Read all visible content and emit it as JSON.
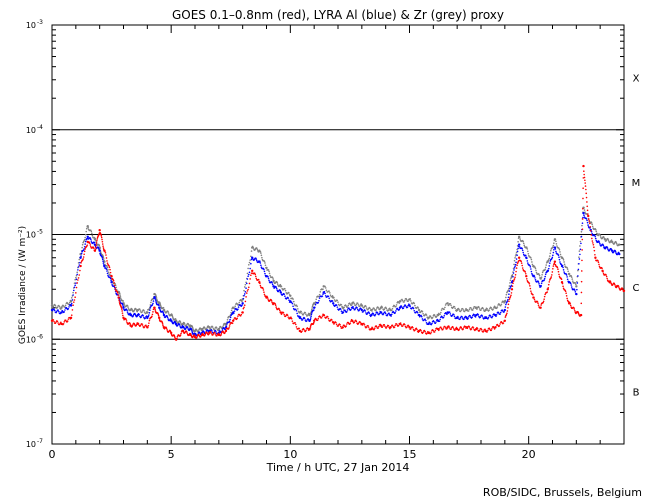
{
  "chart_data": {
    "type": "scatter",
    "title": "GOES 0.1–0.8nm (red), LYRA Al (blue) & Zr (grey) proxy",
    "xlabel": "Time / h UTC, 27 Jan 2014",
    "ylabel": "GOES Irradiance / (W m⁻²)",
    "xlim": [
      0,
      24
    ],
    "ylim": [
      1e-07,
      0.001
    ],
    "yscale": "log",
    "credit": "ROB/SIDC, Brussels, Belgium",
    "x_ticks": [
      0,
      5,
      10,
      15,
      20
    ],
    "y_ticks": [
      {
        "value": 1e-07,
        "base": "10",
        "exp": "-7"
      },
      {
        "value": 1e-06,
        "base": "10",
        "exp": "-6"
      },
      {
        "value": 1e-05,
        "base": "10",
        "exp": "-5"
      },
      {
        "value": 0.0001,
        "base": "10",
        "exp": "-4"
      },
      {
        "value": 0.001,
        "base": "10",
        "exp": "-3"
      }
    ],
    "class_lines": [
      1e-06,
      1e-05,
      0.0001
    ],
    "flare_classes": [
      {
        "label": "X",
        "value": 0.000316
      },
      {
        "label": "M",
        "value": 3.16e-05
      },
      {
        "label": "C",
        "value": 3.16e-06
      },
      {
        "label": "B",
        "value": 3.16e-07
      }
    ],
    "series": [
      {
        "color": "#ff0000",
        "x": [
          0.0,
          0.4,
          0.8,
          1.2,
          1.5,
          1.8,
          2.0,
          2.2,
          2.5,
          2.8,
          3.0,
          3.3,
          3.6,
          4.0,
          4.3,
          4.5,
          4.7,
          5.0,
          5.2,
          5.5,
          5.8,
          6.0,
          6.3,
          6.6,
          7.0,
          7.3,
          7.6,
          8.0,
          8.4,
          8.7,
          9.0,
          9.3,
          9.6,
          10.0,
          10.4,
          10.8,
          11.0,
          11.4,
          11.8,
          12.2,
          12.6,
          13.0,
          13.4,
          13.8,
          14.2,
          14.6,
          15.0,
          15.4,
          15.8,
          16.2,
          16.6,
          17.0,
          17.4,
          17.8,
          18.2,
          18.6,
          19.0,
          19.3,
          19.6,
          19.9,
          20.2,
          20.5,
          20.8,
          21.1,
          21.4,
          21.7,
          22.0,
          22.2,
          22.3,
          22.5,
          22.8,
          23.1,
          23.4,
          23.7,
          24.0
        ],
        "values": [
          1.5e-06,
          1.4e-06,
          1.6e-06,
          5e-06,
          8.5e-06,
          7e-06,
          1.1e-05,
          7e-06,
          4e-06,
          2.5e-06,
          1.6e-06,
          1.35e-06,
          1.4e-06,
          1.3e-06,
          2e-06,
          1.6e-06,
          1.3e-06,
          1.15e-06,
          1e-06,
          1.2e-06,
          1.1e-06,
          1.05e-06,
          1.1e-06,
          1.15e-06,
          1.1e-06,
          1.2e-06,
          1.5e-06,
          1.8e-06,
          4.5e-06,
          3.5e-06,
          2.5e-06,
          2.2e-06,
          1.8e-06,
          1.6e-06,
          1.2e-06,
          1.25e-06,
          1.5e-06,
          1.7e-06,
          1.45e-06,
          1.3e-06,
          1.5e-06,
          1.4e-06,
          1.25e-06,
          1.35e-06,
          1.3e-06,
          1.4e-06,
          1.3e-06,
          1.2e-06,
          1.15e-06,
          1.25e-06,
          1.3e-06,
          1.25e-06,
          1.3e-06,
          1.25e-06,
          1.2e-06,
          1.3e-06,
          1.5e-06,
          3e-06,
          6e-06,
          4e-06,
          2.5e-06,
          2e-06,
          3e-06,
          5.5e-06,
          3.5e-06,
          2.2e-06,
          1.8e-06,
          1.7e-06,
          4.5e-05,
          1.5e-05,
          6e-06,
          4.5e-06,
          3.5e-06,
          3.2e-06,
          2.9e-06
        ]
      },
      {
        "color": "#0000ff",
        "x": [
          0.0,
          0.4,
          0.8,
          1.2,
          1.5,
          1.8,
          2.0,
          2.2,
          2.5,
          2.8,
          3.0,
          3.3,
          3.6,
          4.0,
          4.3,
          4.5,
          4.7,
          5.0,
          5.2,
          5.5,
          5.8,
          6.0,
          6.3,
          6.6,
          7.0,
          7.3,
          7.6,
          8.0,
          8.4,
          8.7,
          9.0,
          9.3,
          9.6,
          10.0,
          10.4,
          10.8,
          11.0,
          11.4,
          11.8,
          12.2,
          12.6,
          13.0,
          13.4,
          13.8,
          14.2,
          14.6,
          15.0,
          15.4,
          15.8,
          16.2,
          16.6,
          17.0,
          17.4,
          17.8,
          18.2,
          18.6,
          19.0,
          19.3,
          19.6,
          19.9,
          20.2,
          20.5,
          20.8,
          21.1,
          21.4,
          21.7,
          22.0,
          22.3,
          22.6,
          22.9,
          23.2,
          23.5,
          23.8
        ],
        "values": [
          1.9e-06,
          1.8e-06,
          2.1e-06,
          6e-06,
          9.5e-06,
          8e-06,
          7e-06,
          5e-06,
          3.5e-06,
          2.5e-06,
          2e-06,
          1.7e-06,
          1.7e-06,
          1.6e-06,
          2.5e-06,
          2e-06,
          1.7e-06,
          1.5e-06,
          1.4e-06,
          1.3e-06,
          1.25e-06,
          1.1e-06,
          1.15e-06,
          1.2e-06,
          1.15e-06,
          1.3e-06,
          1.8e-06,
          2.2e-06,
          6e-06,
          5.5e-06,
          4e-06,
          3.2e-06,
          2.8e-06,
          2.3e-06,
          1.6e-06,
          1.5e-06,
          2e-06,
          2.8e-06,
          2.2e-06,
          1.8e-06,
          2e-06,
          1.9e-06,
          1.7e-06,
          1.8e-06,
          1.7e-06,
          2e-06,
          2.1e-06,
          1.7e-06,
          1.4e-06,
          1.5e-06,
          1.8e-06,
          1.6e-06,
          1.6e-06,
          1.7e-06,
          1.6e-06,
          1.7e-06,
          1.9e-06,
          3.5e-06,
          8e-06,
          6e-06,
          4e-06,
          3.2e-06,
          4.5e-06,
          7.5e-06,
          5e-06,
          3.5e-06,
          2.7e-06,
          1.6e-05,
          1.1e-05,
          8.5e-06,
          7.5e-06,
          7e-06,
          6.5e-06
        ]
      },
      {
        "color": "#808080",
        "x": [
          0.0,
          0.4,
          0.8,
          1.2,
          1.5,
          1.8,
          2.0,
          2.2,
          2.5,
          2.8,
          3.0,
          3.3,
          3.6,
          4.0,
          4.3,
          4.5,
          4.7,
          5.0,
          5.2,
          5.5,
          5.8,
          6.0,
          6.3,
          6.6,
          7.0,
          7.3,
          7.6,
          8.0,
          8.4,
          8.7,
          9.0,
          9.3,
          9.6,
          10.0,
          10.4,
          10.8,
          11.0,
          11.4,
          11.8,
          12.2,
          12.6,
          13.0,
          13.4,
          13.8,
          14.2,
          14.6,
          15.0,
          15.4,
          15.8,
          16.2,
          16.6,
          17.0,
          17.4,
          17.8,
          18.2,
          18.6,
          19.0,
          19.3,
          19.6,
          19.9,
          20.2,
          20.5,
          20.8,
          21.1,
          21.4,
          21.7,
          22.0,
          22.3,
          22.6,
          22.9,
          23.2,
          23.5,
          23.8
        ],
        "values": [
          2.1e-06,
          2e-06,
          2.3e-06,
          6.5e-06,
          1.2e-05,
          9e-06,
          7.5e-06,
          5.5e-06,
          3.8e-06,
          2.8e-06,
          2.2e-06,
          1.9e-06,
          1.9e-06,
          1.8e-06,
          2.7e-06,
          2.2e-06,
          1.9e-06,
          1.7e-06,
          1.5e-06,
          1.4e-06,
          1.35e-06,
          1.2e-06,
          1.25e-06,
          1.3e-06,
          1.25e-06,
          1.4e-06,
          2e-06,
          2.4e-06,
          7.5e-06,
          7e-06,
          4.8e-06,
          3.6e-06,
          3.2e-06,
          2.6e-06,
          1.8e-06,
          1.7e-06,
          2.2e-06,
          3.2e-06,
          2.5e-06,
          2e-06,
          2.2e-06,
          2.1e-06,
          1.9e-06,
          2e-06,
          1.9e-06,
          2.3e-06,
          2.4e-06,
          1.9e-06,
          1.6e-06,
          1.7e-06,
          2.2e-06,
          1.9e-06,
          1.9e-06,
          2e-06,
          1.9e-06,
          2e-06,
          2.3e-06,
          4e-06,
          9.5e-06,
          7.5e-06,
          5e-06,
          3.8e-06,
          5.5e-06,
          9e-06,
          6e-06,
          4.2e-06,
          3.2e-06,
          1.8e-05,
          1.3e-05,
          1e-05,
          9e-06,
          8.5e-06,
          8e-06
        ]
      }
    ]
  }
}
